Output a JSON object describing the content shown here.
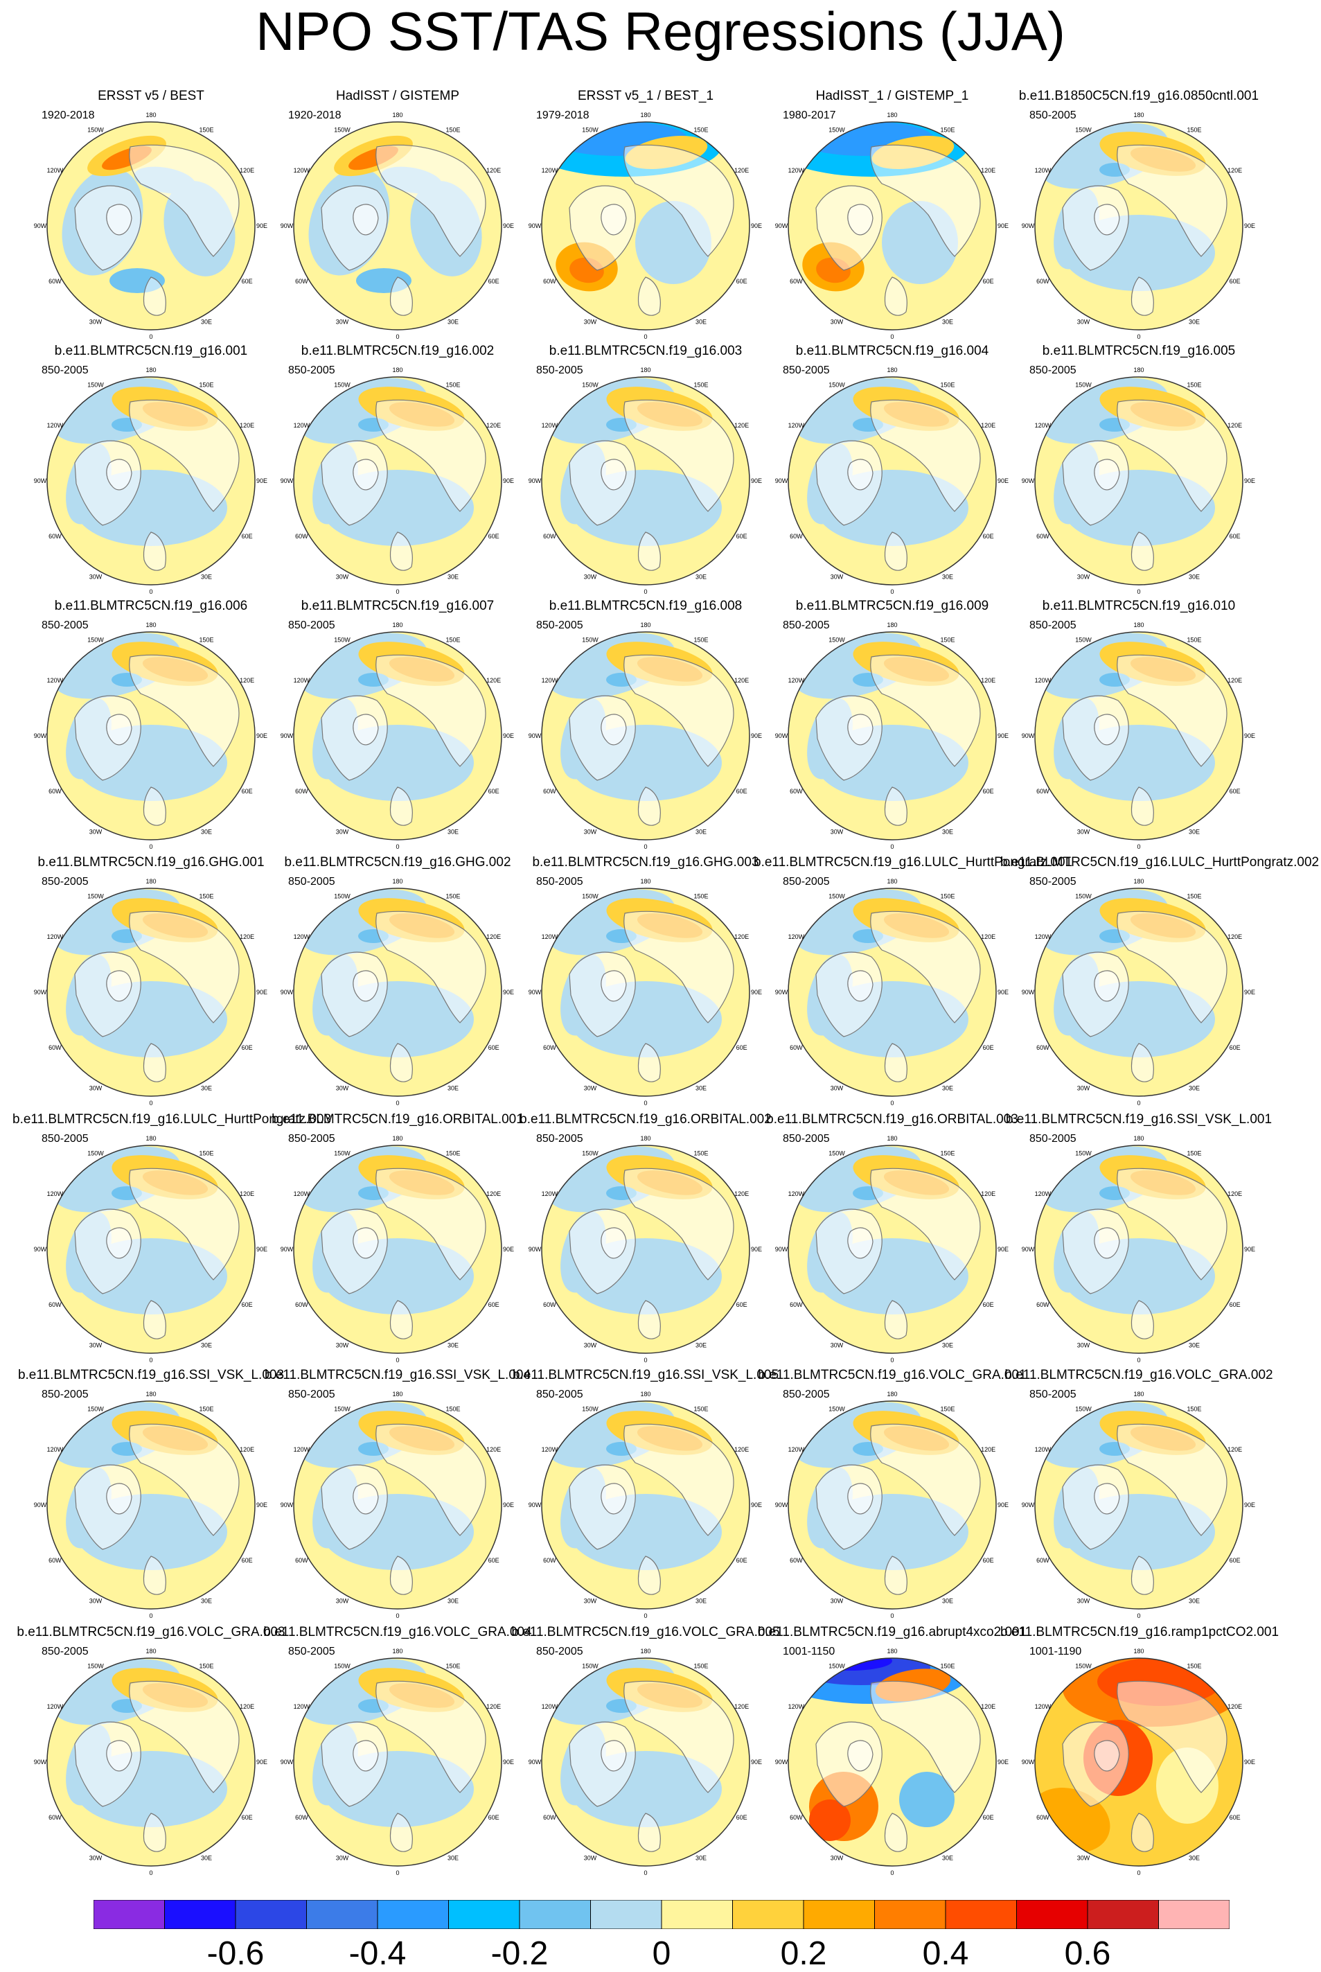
{
  "figure": {
    "title": "NPO SST/TAS Regressions (JJA)",
    "map_ticks": [
      "180",
      "150E",
      "120E",
      "90E",
      "60E",
      "30E",
      "0",
      "30W",
      "60W",
      "90W",
      "120W",
      "150W"
    ]
  },
  "panels": [
    {
      "title": "ERSST v5 / BEST",
      "period": "1920-2018",
      "style": "obs"
    },
    {
      "title": "HadISST / GISTEMP",
      "period": "1920-2018",
      "style": "obs"
    },
    {
      "title": "ERSST v5_1 / BEST_1",
      "period": "1979-2018",
      "style": "recent"
    },
    {
      "title": "HadISST_1 / GISTEMP_1",
      "period": "1980-2017",
      "style": "recent"
    },
    {
      "title": "b.e11.B1850C5CN.f19_g16.0850cntl.001",
      "period": "850-2005",
      "style": "model"
    },
    {
      "title": "b.e11.BLMTRC5CN.f19_g16.001",
      "period": "850-2005",
      "style": "model"
    },
    {
      "title": "b.e11.BLMTRC5CN.f19_g16.002",
      "period": "850-2005",
      "style": "model"
    },
    {
      "title": "b.e11.BLMTRC5CN.f19_g16.003",
      "period": "850-2005",
      "style": "model"
    },
    {
      "title": "b.e11.BLMTRC5CN.f19_g16.004",
      "period": "850-2005",
      "style": "model"
    },
    {
      "title": "b.e11.BLMTRC5CN.f19_g16.005",
      "period": "850-2005",
      "style": "model"
    },
    {
      "title": "b.e11.BLMTRC5CN.f19_g16.006",
      "period": "850-2005",
      "style": "model"
    },
    {
      "title": "b.e11.BLMTRC5CN.f19_g16.007",
      "period": "850-2005",
      "style": "model"
    },
    {
      "title": "b.e11.BLMTRC5CN.f19_g16.008",
      "period": "850-2005",
      "style": "model"
    },
    {
      "title": "b.e11.BLMTRC5CN.f19_g16.009",
      "period": "850-2005",
      "style": "model"
    },
    {
      "title": "b.e11.BLMTRC5CN.f19_g16.010",
      "period": "850-2005",
      "style": "model"
    },
    {
      "title": "b.e11.BLMTRC5CN.f19_g16.GHG.001",
      "period": "850-2005",
      "style": "model"
    },
    {
      "title": "b.e11.BLMTRC5CN.f19_g16.GHG.002",
      "period": "850-2005",
      "style": "model"
    },
    {
      "title": "b.e11.BLMTRC5CN.f19_g16.GHG.003",
      "period": "850-2005",
      "style": "model"
    },
    {
      "title": "b.e11.BLMTRC5CN.f19_g16.LULC_HurttPongratz.001",
      "period": "850-2005",
      "style": "model"
    },
    {
      "title": "b.e11.BLMTRC5CN.f19_g16.LULC_HurttPongratz.002",
      "period": "850-2005",
      "style": "model"
    },
    {
      "title": "b.e11.BLMTRC5CN.f19_g16.LULC_HurttPongratz.003",
      "period": "850-2005",
      "style": "model"
    },
    {
      "title": "b.e11.BLMTRC5CN.f19_g16.ORBITAL.001",
      "period": "850-2005",
      "style": "model"
    },
    {
      "title": "b.e11.BLMTRC5CN.f19_g16.ORBITAL.002",
      "period": "850-2005",
      "style": "model"
    },
    {
      "title": "b.e11.BLMTRC5CN.f19_g16.ORBITAL.003",
      "period": "850-2005",
      "style": "model"
    },
    {
      "title": "b.e11.BLMTRC5CN.f19_g16.SSI_VSK_L.001",
      "period": "850-2005",
      "style": "model"
    },
    {
      "title": "b.e11.BLMTRC5CN.f19_g16.SSI_VSK_L.003",
      "period": "850-2005",
      "style": "model"
    },
    {
      "title": "b.e11.BLMTRC5CN.f19_g16.SSI_VSK_L.004",
      "period": "850-2005",
      "style": "model"
    },
    {
      "title": "b.e11.BLMTRC5CN.f19_g16.SSI_VSK_L.005",
      "period": "850-2005",
      "style": "model"
    },
    {
      "title": "b.e11.BLMTRC5CN.f19_g16.VOLC_GRA.001",
      "period": "850-2005",
      "style": "model"
    },
    {
      "title": "b.e11.BLMTRC5CN.f19_g16.VOLC_GRA.002",
      "period": "850-2005",
      "style": "model"
    },
    {
      "title": "b.e11.BLMTRC5CN.f19_g16.VOLC_GRA.003",
      "period": "850-2005",
      "style": "model"
    },
    {
      "title": "b.e11.BLMTRC5CN.f19_g16.VOLC_GRA.004",
      "period": "850-2005",
      "style": "model"
    },
    {
      "title": "b.e11.BLMTRC5CN.f19_g16.VOLC_GRA.005",
      "period": "850-2005",
      "style": "model"
    },
    {
      "title": "b.e11.BLMTRC5CN.f19_g16.abrupt4xco2.001",
      "period": "1001-1150",
      "style": "abrupt"
    },
    {
      "title": "b.e11.BLMTRC5CN.f19_g16.ramp1pctCO2.001",
      "period": "1001-1190",
      "style": "ramp"
    }
  ],
  "colorbar": {
    "colors": [
      "#8a2be2",
      "#1a0fff",
      "#2c47e6",
      "#3c7ce8",
      "#2a9bff",
      "#00bfff",
      "#70c3f0",
      "#b4dcf0",
      "#fff59d",
      "#ffd23c",
      "#ffaa00",
      "#ff7e00",
      "#ff4d00",
      "#e60000",
      "#cc1e1e",
      "#ffb4b4"
    ],
    "labels": [
      "-0.6",
      "-0.4",
      "-0.2",
      "0",
      "0.2",
      "0.4",
      "0.6"
    ]
  },
  "palette": {
    "land": "#ffffff",
    "coast": "#777777",
    "outline": "#333333"
  }
}
